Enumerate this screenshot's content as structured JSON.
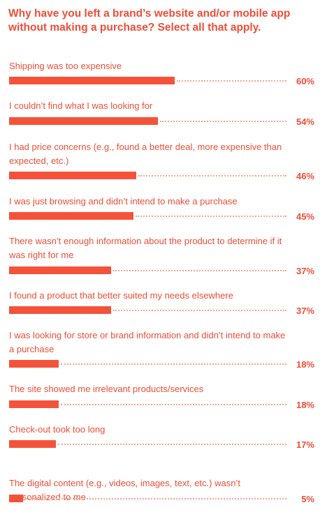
{
  "chart_data": {
    "type": "bar",
    "orientation": "horizontal",
    "title": "Why have you left a brand’s website and/or mobile app without making a purchase? Select all that apply.",
    "xlim": [
      0,
      100
    ],
    "unit": "%",
    "bar_color": "#f4533a",
    "text_color": "#f04e37",
    "categories": [
      "Shipping was too expensive",
      "I couldn’t find what I was looking for",
      "I had price concerns (e.g., found a better deal, more expensive than expected, etc.)",
      "I was just browsing and didn’t intend to make a purchase",
      "There wasn’t enough information about the product to determine if it was right for me",
      "I found a product that better suited my needs elsewhere",
      "I was looking for store or brand information and didn’t intend to make a purchase",
      "The site showed me irrelevant products/services",
      "Check-out took too long",
      "The digital content (e.g., videos, images, text, etc.) wasn’t personalized to me"
    ],
    "values": [
      60,
      54,
      46,
      45,
      37,
      37,
      18,
      18,
      17,
      5
    ],
    "value_labels": [
      "60%",
      "54%",
      "46%",
      "45%",
      "37%",
      "37%",
      "18%",
      "18%",
      "17%",
      "5%"
    ]
  }
}
